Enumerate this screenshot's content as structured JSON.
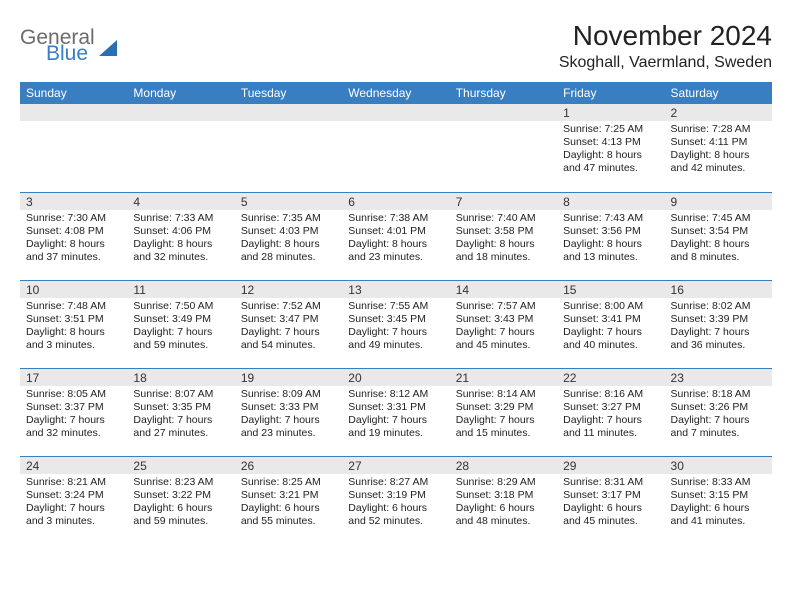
{
  "logo": {
    "text1": "General",
    "text2": "Blue"
  },
  "title": "November 2024",
  "location": "Skoghall, Vaermland, Sweden",
  "colors": {
    "accent": "#3a7ec2",
    "header_bg": "#3a7ec2",
    "daynum_bg": "#e9e9e9",
    "text": "#222222"
  },
  "weekdays": [
    "Sunday",
    "Monday",
    "Tuesday",
    "Wednesday",
    "Thursday",
    "Friday",
    "Saturday"
  ],
  "weeks": [
    [
      {
        "n": "",
        "sunrise": "",
        "sunset": "",
        "daylight": ""
      },
      {
        "n": "",
        "sunrise": "",
        "sunset": "",
        "daylight": ""
      },
      {
        "n": "",
        "sunrise": "",
        "sunset": "",
        "daylight": ""
      },
      {
        "n": "",
        "sunrise": "",
        "sunset": "",
        "daylight": ""
      },
      {
        "n": "",
        "sunrise": "",
        "sunset": "",
        "daylight": ""
      },
      {
        "n": "1",
        "sunrise": "Sunrise: 7:25 AM",
        "sunset": "Sunset: 4:13 PM",
        "daylight": "Daylight: 8 hours and 47 minutes."
      },
      {
        "n": "2",
        "sunrise": "Sunrise: 7:28 AM",
        "sunset": "Sunset: 4:11 PM",
        "daylight": "Daylight: 8 hours and 42 minutes."
      }
    ],
    [
      {
        "n": "3",
        "sunrise": "Sunrise: 7:30 AM",
        "sunset": "Sunset: 4:08 PM",
        "daylight": "Daylight: 8 hours and 37 minutes."
      },
      {
        "n": "4",
        "sunrise": "Sunrise: 7:33 AM",
        "sunset": "Sunset: 4:06 PM",
        "daylight": "Daylight: 8 hours and 32 minutes."
      },
      {
        "n": "5",
        "sunrise": "Sunrise: 7:35 AM",
        "sunset": "Sunset: 4:03 PM",
        "daylight": "Daylight: 8 hours and 28 minutes."
      },
      {
        "n": "6",
        "sunrise": "Sunrise: 7:38 AM",
        "sunset": "Sunset: 4:01 PM",
        "daylight": "Daylight: 8 hours and 23 minutes."
      },
      {
        "n": "7",
        "sunrise": "Sunrise: 7:40 AM",
        "sunset": "Sunset: 3:58 PM",
        "daylight": "Daylight: 8 hours and 18 minutes."
      },
      {
        "n": "8",
        "sunrise": "Sunrise: 7:43 AM",
        "sunset": "Sunset: 3:56 PM",
        "daylight": "Daylight: 8 hours and 13 minutes."
      },
      {
        "n": "9",
        "sunrise": "Sunrise: 7:45 AM",
        "sunset": "Sunset: 3:54 PM",
        "daylight": "Daylight: 8 hours and 8 minutes."
      }
    ],
    [
      {
        "n": "10",
        "sunrise": "Sunrise: 7:48 AM",
        "sunset": "Sunset: 3:51 PM",
        "daylight": "Daylight: 8 hours and 3 minutes."
      },
      {
        "n": "11",
        "sunrise": "Sunrise: 7:50 AM",
        "sunset": "Sunset: 3:49 PM",
        "daylight": "Daylight: 7 hours and 59 minutes."
      },
      {
        "n": "12",
        "sunrise": "Sunrise: 7:52 AM",
        "sunset": "Sunset: 3:47 PM",
        "daylight": "Daylight: 7 hours and 54 minutes."
      },
      {
        "n": "13",
        "sunrise": "Sunrise: 7:55 AM",
        "sunset": "Sunset: 3:45 PM",
        "daylight": "Daylight: 7 hours and 49 minutes."
      },
      {
        "n": "14",
        "sunrise": "Sunrise: 7:57 AM",
        "sunset": "Sunset: 3:43 PM",
        "daylight": "Daylight: 7 hours and 45 minutes."
      },
      {
        "n": "15",
        "sunrise": "Sunrise: 8:00 AM",
        "sunset": "Sunset: 3:41 PM",
        "daylight": "Daylight: 7 hours and 40 minutes."
      },
      {
        "n": "16",
        "sunrise": "Sunrise: 8:02 AM",
        "sunset": "Sunset: 3:39 PM",
        "daylight": "Daylight: 7 hours and 36 minutes."
      }
    ],
    [
      {
        "n": "17",
        "sunrise": "Sunrise: 8:05 AM",
        "sunset": "Sunset: 3:37 PM",
        "daylight": "Daylight: 7 hours and 32 minutes."
      },
      {
        "n": "18",
        "sunrise": "Sunrise: 8:07 AM",
        "sunset": "Sunset: 3:35 PM",
        "daylight": "Daylight: 7 hours and 27 minutes."
      },
      {
        "n": "19",
        "sunrise": "Sunrise: 8:09 AM",
        "sunset": "Sunset: 3:33 PM",
        "daylight": "Daylight: 7 hours and 23 minutes."
      },
      {
        "n": "20",
        "sunrise": "Sunrise: 8:12 AM",
        "sunset": "Sunset: 3:31 PM",
        "daylight": "Daylight: 7 hours and 19 minutes."
      },
      {
        "n": "21",
        "sunrise": "Sunrise: 8:14 AM",
        "sunset": "Sunset: 3:29 PM",
        "daylight": "Daylight: 7 hours and 15 minutes."
      },
      {
        "n": "22",
        "sunrise": "Sunrise: 8:16 AM",
        "sunset": "Sunset: 3:27 PM",
        "daylight": "Daylight: 7 hours and 11 minutes."
      },
      {
        "n": "23",
        "sunrise": "Sunrise: 8:18 AM",
        "sunset": "Sunset: 3:26 PM",
        "daylight": "Daylight: 7 hours and 7 minutes."
      }
    ],
    [
      {
        "n": "24",
        "sunrise": "Sunrise: 8:21 AM",
        "sunset": "Sunset: 3:24 PM",
        "daylight": "Daylight: 7 hours and 3 minutes."
      },
      {
        "n": "25",
        "sunrise": "Sunrise: 8:23 AM",
        "sunset": "Sunset: 3:22 PM",
        "daylight": "Daylight: 6 hours and 59 minutes."
      },
      {
        "n": "26",
        "sunrise": "Sunrise: 8:25 AM",
        "sunset": "Sunset: 3:21 PM",
        "daylight": "Daylight: 6 hours and 55 minutes."
      },
      {
        "n": "27",
        "sunrise": "Sunrise: 8:27 AM",
        "sunset": "Sunset: 3:19 PM",
        "daylight": "Daylight: 6 hours and 52 minutes."
      },
      {
        "n": "28",
        "sunrise": "Sunrise: 8:29 AM",
        "sunset": "Sunset: 3:18 PM",
        "daylight": "Daylight: 6 hours and 48 minutes."
      },
      {
        "n": "29",
        "sunrise": "Sunrise: 8:31 AM",
        "sunset": "Sunset: 3:17 PM",
        "daylight": "Daylight: 6 hours and 45 minutes."
      },
      {
        "n": "30",
        "sunrise": "Sunrise: 8:33 AM",
        "sunset": "Sunset: 3:15 PM",
        "daylight": "Daylight: 6 hours and 41 minutes."
      }
    ]
  ]
}
